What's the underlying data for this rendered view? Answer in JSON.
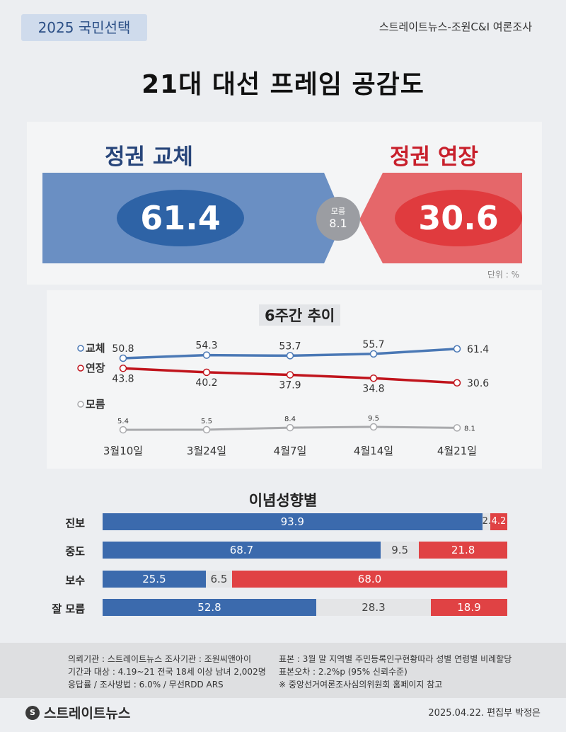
{
  "header": {
    "badge": "2025 국민선택",
    "source": "스트레이트뉴스-조원C&I 여론조사",
    "title": "21대 대선 프레임 공감도"
  },
  "summary": {
    "left_label": "정권 교체",
    "left_value": "61.4",
    "right_label": "정권 연장",
    "right_value": "30.6",
    "mid_label": "모름",
    "mid_value": "8.1",
    "unit": "단위 : %",
    "colors": {
      "blue": "#3b6aad",
      "red": "#e04244",
      "gray": "#9b9da2"
    }
  },
  "chart_data": [
    {
      "type": "line",
      "title": "6주간 추이",
      "categories": [
        "3월10일",
        "3월24일",
        "4월7일",
        "4월14일",
        "4월21일"
      ],
      "series": [
        {
          "name": "교체",
          "values": [
            50.8,
            54.3,
            53.7,
            55.7,
            61.4
          ],
          "color": "#4a78b5"
        },
        {
          "name": "연장",
          "values": [
            43.8,
            40.2,
            37.9,
            34.8,
            30.6
          ],
          "color": "#c0141c"
        },
        {
          "name": "모름",
          "values": [
            5.4,
            5.5,
            8.4,
            9.5,
            8.1
          ],
          "color": "#a9aaad"
        }
      ]
    },
    {
      "type": "bar",
      "stacked": true,
      "title": "이념성향별",
      "categories": [
        "진보",
        "중도",
        "보수",
        "잘 모름"
      ],
      "series": [
        {
          "name": "정권 교체",
          "values": [
            93.9,
            68.7,
            25.5,
            52.8
          ],
          "color": "#3b6aad"
        },
        {
          "name": "모름",
          "values": [
            2.0,
            9.5,
            6.5,
            28.3
          ],
          "color": "#e4e5e7"
        },
        {
          "name": "정권 연장",
          "values": [
            4.2,
            21.8,
            68.0,
            18.9
          ],
          "color": "#e04244"
        }
      ],
      "value_labels": [
        [
          "93.9",
          "2.0",
          "4.2"
        ],
        [
          "68.7",
          "9.5",
          "21.8"
        ],
        [
          "25.5",
          "6.5",
          "68.0"
        ],
        [
          "52.8",
          "28.3",
          "18.9"
        ]
      ]
    }
  ],
  "footer": {
    "left": [
      "의뢰기관 : 스트레이트뉴스  조사기관 : 조원씨앤아이",
      "기간과 대상 : 4.19~21 전국 18세 이상 남녀 2,002명",
      "응답률 / 조사방법 : 6.0% / 무선RDD ARS"
    ],
    "right": [
      "표본 : 3월 말 지역별 주민등록인구현황따라 성별 연령별 비례할당",
      "표본오차 : 2.2%p (95% 신뢰수준)",
      "※ 중앙선거여론조사심의위원회 홈페이지 참고"
    ],
    "logo": "스트레이트뉴스",
    "date": "2025.04.22. 편집부 박정은"
  }
}
